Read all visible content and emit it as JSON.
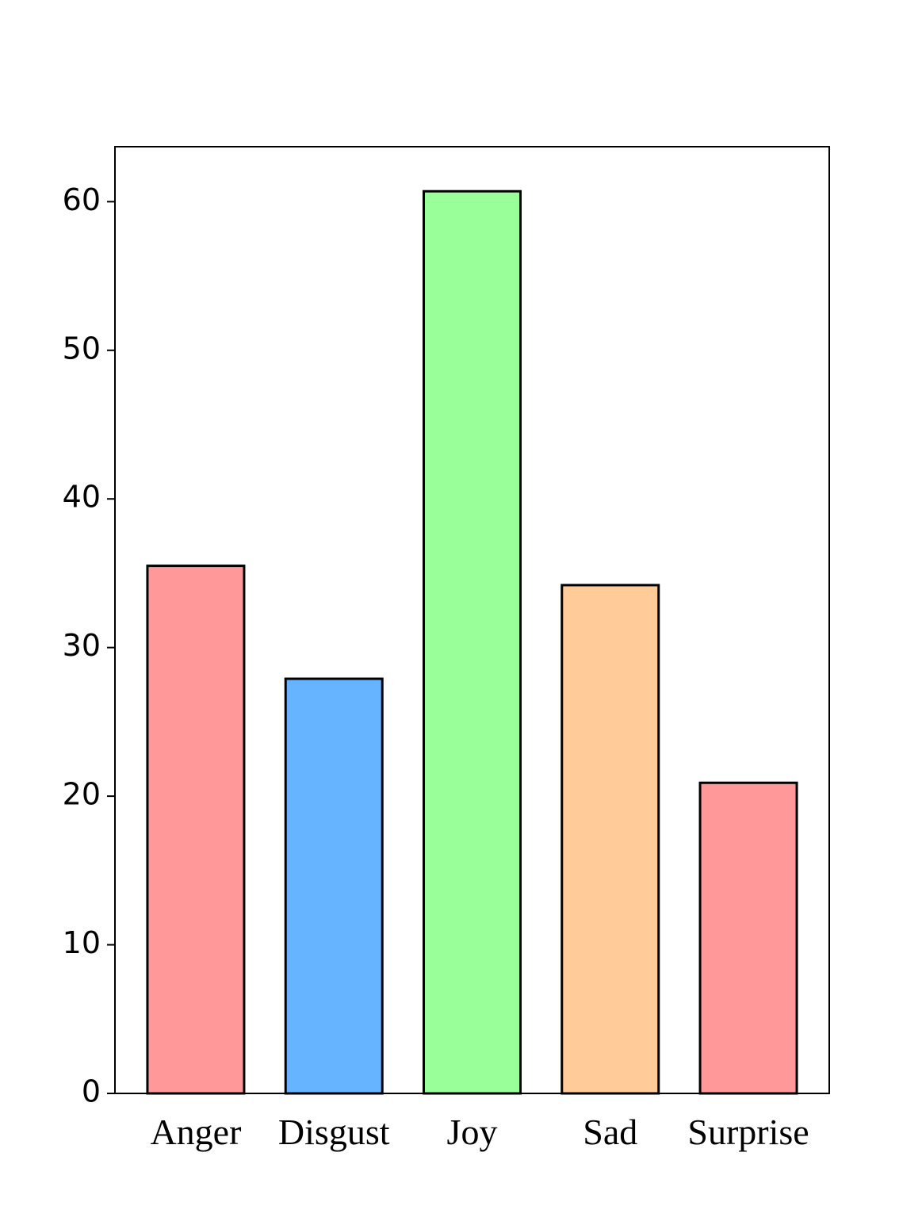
{
  "chart_data": {
    "type": "bar",
    "categories": [
      "Anger",
      "Disgust",
      "Joy",
      "Sad",
      "Surprise"
    ],
    "values": [
      35.5,
      27.9,
      60.7,
      34.2,
      20.9
    ],
    "colors": [
      "#ff9999",
      "#66b3ff",
      "#99ff99",
      "#ffcc99",
      "#ff9999"
    ],
    "ylim": [
      0,
      63.7
    ],
    "yticks": [
      0,
      10,
      20,
      30,
      40,
      50,
      60
    ],
    "grid": false
  }
}
